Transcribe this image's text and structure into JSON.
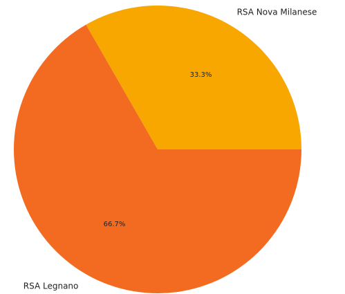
{
  "chart_data": {
    "type": "pie",
    "categories": [
      "RSA Nova Milanese",
      "RSA Legnano"
    ],
    "values": [
      33.3,
      66.7
    ],
    "value_labels": [
      "33.3%",
      "66.7%"
    ],
    "colors": [
      "#F8A700",
      "#F26B20"
    ],
    "title": "",
    "legend": "none"
  }
}
